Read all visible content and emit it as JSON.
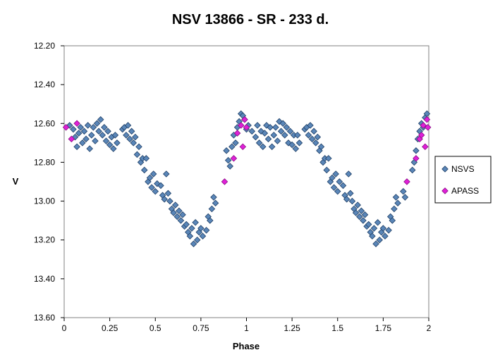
{
  "chart_data": {
    "type": "scatter",
    "title": "NSV 13866 - SR - 233  d.",
    "xlabel": "Phase",
    "ylabel": "V",
    "xlim": [
      0,
      2
    ],
    "ylim": [
      12.2,
      13.6
    ],
    "y_inverted": true,
    "x_ticks": [
      "0",
      "0.25",
      "0.5",
      "0.75",
      "1",
      "1.25",
      "1.5",
      "1.75",
      "2"
    ],
    "x_tick_values": [
      0,
      0.25,
      0.5,
      0.75,
      1,
      1.25,
      1.5,
      1.75,
      2
    ],
    "y_ticks": [
      "12.20",
      "12.40",
      "12.60",
      "12.80",
      "13.00",
      "13.20",
      "13.40",
      "13.60"
    ],
    "y_tick_values": [
      12.2,
      12.4,
      12.6,
      12.8,
      13.0,
      13.2,
      13.4,
      13.6
    ],
    "grid": "none",
    "legend_position": "right",
    "series": [
      {
        "name": "NSVS",
        "color": "#5a86b8",
        "edge": "#1f3f66",
        "marker": "diamond",
        "points": [
          [
            0.03,
            12.61
          ],
          [
            0.05,
            12.63
          ],
          [
            0.06,
            12.67
          ],
          [
            0.07,
            12.72
          ],
          [
            0.08,
            12.65
          ],
          [
            0.09,
            12.62
          ],
          [
            0.1,
            12.7
          ],
          [
            0.11,
            12.64
          ],
          [
            0.12,
            12.68
          ],
          [
            0.13,
            12.61
          ],
          [
            0.14,
            12.73
          ],
          [
            0.15,
            12.66
          ],
          [
            0.16,
            12.62
          ],
          [
            0.17,
            12.69
          ],
          [
            0.18,
            12.6
          ],
          [
            0.19,
            12.64
          ],
          [
            0.2,
            12.58
          ],
          [
            0.21,
            12.66
          ],
          [
            0.22,
            12.62
          ],
          [
            0.23,
            12.69
          ],
          [
            0.24,
            12.64
          ],
          [
            0.25,
            12.71
          ],
          [
            0.26,
            12.67
          ],
          [
            0.27,
            12.73
          ],
          [
            0.28,
            12.66
          ],
          [
            0.29,
            12.7
          ],
          [
            0.32,
            12.63
          ],
          [
            0.33,
            12.62
          ],
          [
            0.34,
            12.66
          ],
          [
            0.35,
            12.61
          ],
          [
            0.36,
            12.68
          ],
          [
            0.37,
            12.64
          ],
          [
            0.38,
            12.7
          ],
          [
            0.39,
            12.67
          ],
          [
            0.4,
            12.76
          ],
          [
            0.41,
            12.72
          ],
          [
            0.42,
            12.8
          ],
          [
            0.43,
            12.78
          ],
          [
            0.44,
            12.84
          ],
          [
            0.45,
            12.78
          ],
          [
            0.46,
            12.9
          ],
          [
            0.47,
            12.88
          ],
          [
            0.48,
            12.93
          ],
          [
            0.49,
            12.86
          ],
          [
            0.5,
            12.95
          ],
          [
            0.51,
            12.91
          ],
          [
            0.53,
            12.92
          ],
          [
            0.54,
            12.97
          ],
          [
            0.55,
            12.99
          ],
          [
            0.56,
            12.86
          ],
          [
            0.57,
            12.96
          ],
          [
            0.58,
            13.0
          ],
          [
            0.59,
            13.04
          ],
          [
            0.6,
            13.06
          ],
          [
            0.61,
            13.02
          ],
          [
            0.62,
            13.08
          ],
          [
            0.63,
            13.05
          ],
          [
            0.64,
            13.1
          ],
          [
            0.65,
            13.07
          ],
          [
            0.66,
            13.13
          ],
          [
            0.67,
            13.12
          ],
          [
            0.68,
            13.16
          ],
          [
            0.69,
            13.18
          ],
          [
            0.7,
            13.14
          ],
          [
            0.71,
            13.22
          ],
          [
            0.72,
            13.11
          ],
          [
            0.73,
            13.2
          ],
          [
            0.74,
            13.16
          ],
          [
            0.75,
            13.14
          ],
          [
            0.76,
            13.18
          ],
          [
            0.78,
            13.15
          ],
          [
            0.79,
            13.08
          ],
          [
            0.8,
            13.1
          ],
          [
            0.81,
            13.04
          ],
          [
            0.82,
            12.98
          ],
          [
            0.83,
            13.01
          ],
          [
            0.89,
            12.74
          ],
          [
            0.9,
            12.79
          ],
          [
            0.91,
            12.82
          ],
          [
            0.92,
            12.72
          ],
          [
            0.93,
            12.66
          ],
          [
            0.94,
            12.7
          ],
          [
            0.95,
            12.62
          ],
          [
            0.96,
            12.59
          ],
          [
            0.97,
            12.55
          ],
          [
            0.98,
            12.56
          ],
          [
            0.99,
            12.58
          ],
          [
            1.0,
            12.63
          ],
          [
            1.01,
            12.61
          ],
          [
            1.03,
            12.64
          ],
          [
            1.05,
            12.67
          ],
          [
            1.06,
            12.61
          ],
          [
            1.07,
            12.7
          ],
          [
            1.08,
            12.64
          ],
          [
            1.09,
            12.72
          ],
          [
            1.1,
            12.65
          ],
          [
            1.11,
            12.61
          ],
          [
            1.12,
            12.68
          ],
          [
            1.13,
            12.62
          ],
          [
            1.14,
            12.72
          ],
          [
            1.15,
            12.66
          ],
          [
            1.16,
            12.62
          ],
          [
            1.17,
            12.69
          ],
          [
            1.18,
            12.59
          ],
          [
            1.19,
            12.64
          ],
          [
            1.2,
            12.6
          ],
          [
            1.21,
            12.66
          ],
          [
            1.22,
            12.62
          ],
          [
            1.23,
            12.7
          ],
          [
            1.24,
            12.64
          ],
          [
            1.25,
            12.71
          ],
          [
            1.26,
            12.66
          ],
          [
            1.27,
            12.73
          ],
          [
            1.28,
            12.66
          ],
          [
            1.29,
            12.7
          ],
          [
            1.32,
            12.63
          ],
          [
            1.33,
            12.62
          ],
          [
            1.34,
            12.66
          ],
          [
            1.35,
            12.61
          ],
          [
            1.36,
            12.68
          ],
          [
            1.37,
            12.64
          ],
          [
            1.38,
            12.7
          ],
          [
            1.39,
            12.67
          ],
          [
            1.4,
            12.74
          ],
          [
            1.41,
            12.72
          ],
          [
            1.42,
            12.8
          ],
          [
            1.43,
            12.78
          ],
          [
            1.44,
            12.84
          ],
          [
            1.45,
            12.78
          ],
          [
            1.46,
            12.9
          ],
          [
            1.47,
            12.88
          ],
          [
            1.48,
            12.93
          ],
          [
            1.49,
            12.86
          ],
          [
            1.5,
            12.95
          ],
          [
            1.51,
            12.9
          ],
          [
            1.53,
            12.92
          ],
          [
            1.54,
            12.97
          ],
          [
            1.55,
            12.99
          ],
          [
            1.56,
            12.86
          ],
          [
            1.57,
            12.96
          ],
          [
            1.58,
            13.0
          ],
          [
            1.59,
            13.04
          ],
          [
            1.6,
            13.06
          ],
          [
            1.61,
            13.02
          ],
          [
            1.62,
            13.08
          ],
          [
            1.63,
            13.05
          ],
          [
            1.64,
            13.1
          ],
          [
            1.65,
            13.07
          ],
          [
            1.66,
            13.13
          ],
          [
            1.67,
            13.12
          ],
          [
            1.68,
            13.16
          ],
          [
            1.69,
            13.18
          ],
          [
            1.7,
            13.14
          ],
          [
            1.71,
            13.22
          ],
          [
            1.72,
            13.11
          ],
          [
            1.73,
            13.2
          ],
          [
            1.74,
            13.16
          ],
          [
            1.75,
            13.14
          ],
          [
            1.76,
            13.18
          ],
          [
            1.78,
            13.15
          ],
          [
            1.79,
            13.08
          ],
          [
            1.8,
            13.1
          ],
          [
            1.81,
            13.04
          ],
          [
            1.82,
            12.98
          ],
          [
            1.83,
            13.01
          ],
          [
            1.86,
            12.95
          ],
          [
            1.87,
            12.98
          ],
          [
            1.91,
            12.84
          ],
          [
            1.92,
            12.8
          ],
          [
            1.93,
            12.74
          ],
          [
            1.94,
            12.68
          ],
          [
            1.95,
            12.64
          ],
          [
            1.96,
            12.6
          ],
          [
            1.97,
            12.62
          ],
          [
            1.98,
            12.57
          ],
          [
            1.99,
            12.55
          ]
        ]
      },
      {
        "name": "APASS",
        "color": "#e020d8",
        "edge": "#8a0f85",
        "marker": "diamond",
        "points": [
          [
            0.01,
            12.62
          ],
          [
            0.04,
            12.68
          ],
          [
            0.07,
            12.6
          ],
          [
            0.88,
            12.9
          ],
          [
            0.93,
            12.78
          ],
          [
            0.95,
            12.65
          ],
          [
            0.97,
            12.61
          ],
          [
            0.98,
            12.72
          ],
          [
            0.99,
            12.58
          ],
          [
            1.0,
            12.62
          ],
          [
            1.88,
            12.9
          ],
          [
            1.93,
            12.78
          ],
          [
            1.95,
            12.68
          ],
          [
            1.96,
            12.66
          ],
          [
            1.97,
            12.61
          ],
          [
            1.98,
            12.72
          ],
          [
            1.99,
            12.58
          ],
          [
            1.995,
            12.62
          ]
        ]
      }
    ]
  }
}
